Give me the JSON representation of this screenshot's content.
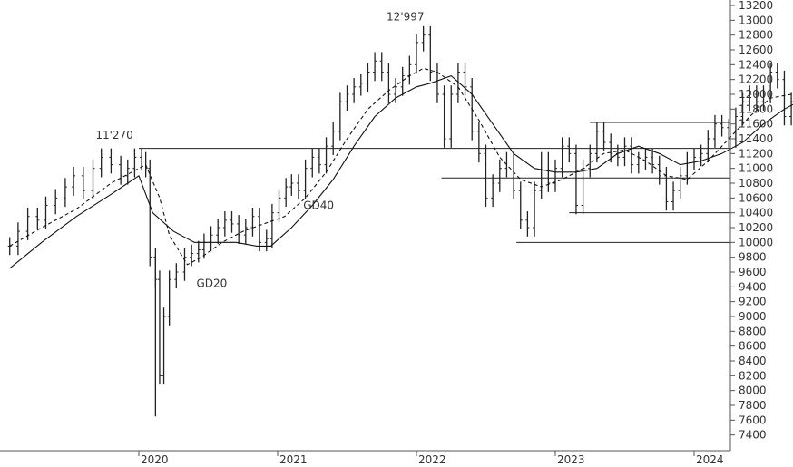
{
  "chart_data": {
    "type": "line",
    "title": "",
    "xlabel": "",
    "ylabel": "",
    "y_axis_position": "right",
    "ylim": [
      7200,
      13200
    ],
    "y_ticks": [
      7400,
      7600,
      7800,
      8000,
      8200,
      8400,
      8600,
      8800,
      9000,
      9200,
      9400,
      9600,
      9800,
      10000,
      10200,
      10400,
      10600,
      10800,
      11000,
      11200,
      11400,
      11600,
      11800,
      12000,
      12200,
      12400,
      12600,
      12800,
      13000,
      13200
    ],
    "x_ticks": [
      "2020",
      "2021",
      "2022",
      "2023",
      "2024"
    ],
    "grid": false,
    "series": [
      {
        "style": "candlestick",
        "points": [
          [
            2019.07,
            9950
          ],
          [
            2019.13,
            10150
          ],
          [
            2019.2,
            10350
          ],
          [
            2019.27,
            10300
          ],
          [
            2019.33,
            10500
          ],
          [
            2019.4,
            10600
          ],
          [
            2019.47,
            10750
          ],
          [
            2019.53,
            10900
          ],
          [
            2019.6,
            10700
          ],
          [
            2019.67,
            11000
          ],
          [
            2019.73,
            11150
          ],
          [
            2019.8,
            11050
          ],
          [
            2019.87,
            10900
          ],
          [
            2019.92,
            11000
          ],
          [
            2019.97,
            11150
          ],
          [
            2020.02,
            11100
          ],
          [
            2020.05,
            11000
          ],
          [
            2020.08,
            9800
          ],
          [
            2020.12,
            9500
          ],
          [
            2020.15,
            8200
          ],
          [
            2020.18,
            9000
          ],
          [
            2020.22,
            9500
          ],
          [
            2020.27,
            9600
          ],
          [
            2020.33,
            9800
          ],
          [
            2020.38,
            9850
          ],
          [
            2020.43,
            9900
          ],
          [
            2020.47,
            10000
          ],
          [
            2020.52,
            10100
          ],
          [
            2020.57,
            10200
          ],
          [
            2020.62,
            10300
          ],
          [
            2020.67,
            10250
          ],
          [
            2020.72,
            10100
          ],
          [
            2020.77,
            10200
          ],
          [
            2020.82,
            10350
          ],
          [
            2020.87,
            10000
          ],
          [
            2020.92,
            10050
          ],
          [
            2020.96,
            10400
          ],
          [
            2021.01,
            10600
          ],
          [
            2021.06,
            10750
          ],
          [
            2021.1,
            10800
          ],
          [
            2021.15,
            10700
          ],
          [
            2021.2,
            11000
          ],
          [
            2021.25,
            11150
          ],
          [
            2021.3,
            11050
          ],
          [
            2021.35,
            11300
          ],
          [
            2021.4,
            11500
          ],
          [
            2021.45,
            11900
          ],
          [
            2021.5,
            12000
          ],
          [
            2021.55,
            12100
          ],
          [
            2021.6,
            12150
          ],
          [
            2021.65,
            12300
          ],
          [
            2021.7,
            12450
          ],
          [
            2021.75,
            12300
          ],
          [
            2021.8,
            12000
          ],
          [
            2021.85,
            12100
          ],
          [
            2021.9,
            12250
          ],
          [
            2021.95,
            12400
          ],
          [
            2022.0,
            12700
          ],
          [
            2022.05,
            12800
          ],
          [
            2022.1,
            12300
          ],
          [
            2022.15,
            12000
          ],
          [
            2022.2,
            11400
          ],
          [
            2022.25,
            12000
          ],
          [
            2022.3,
            12300
          ],
          [
            2022.35,
            12100
          ],
          [
            2022.4,
            11500
          ],
          [
            2022.45,
            11200
          ],
          [
            2022.5,
            10600
          ],
          [
            2022.55,
            10800
          ],
          [
            2022.6,
            11000
          ],
          [
            2022.65,
            11100
          ],
          [
            2022.7,
            10700
          ],
          [
            2022.75,
            10300
          ],
          [
            2022.8,
            10200
          ],
          [
            2022.85,
            10700
          ],
          [
            2022.9,
            11100
          ],
          [
            2022.95,
            10800
          ],
          [
            2023.0,
            11000
          ],
          [
            2023.05,
            11300
          ],
          [
            2023.1,
            11200
          ],
          [
            2023.15,
            10500
          ],
          [
            2023.2,
            11000
          ],
          [
            2023.25,
            11200
          ],
          [
            2023.3,
            11500
          ],
          [
            2023.35,
            11350
          ],
          [
            2023.4,
            11200
          ],
          [
            2023.45,
            11150
          ],
          [
            2023.5,
            11300
          ],
          [
            2023.55,
            11050
          ],
          [
            2023.6,
            11100
          ],
          [
            2023.65,
            11150
          ],
          [
            2023.7,
            11050
          ],
          [
            2023.75,
            10900
          ],
          [
            2023.8,
            10550
          ],
          [
            2023.85,
            10700
          ],
          [
            2023.9,
            10900
          ],
          [
            2023.95,
            11100
          ],
          [
            2024.0,
            11150
          ],
          [
            2024.05,
            11200
          ],
          [
            2024.1,
            11400
          ],
          [
            2024.15,
            11600
          ],
          [
            2024.2,
            11550
          ],
          [
            2024.25,
            11400
          ],
          [
            2024.3,
            11700
          ],
          [
            2024.35,
            11900
          ],
          [
            2024.4,
            12000
          ],
          [
            2024.45,
            11900
          ],
          [
            2024.5,
            12000
          ],
          [
            2024.55,
            12300
          ],
          [
            2024.6,
            12200
          ],
          [
            2024.65,
            11700
          ],
          [
            2024.7,
            11900
          ],
          [
            2024.75,
            12100
          ],
          [
            2024.8,
            12150
          ],
          [
            2024.85,
            12300
          ],
          [
            2024.9,
            12000
          ],
          [
            2024.95,
            11800
          ],
          [
            2025.0,
            11600
          ]
        ]
      },
      {
        "name": "GD20",
        "style": "dashed",
        "points": [
          [
            2019.07,
            9950
          ],
          [
            2019.3,
            10200
          ],
          [
            2019.55,
            10450
          ],
          [
            2019.8,
            10800
          ],
          [
            2020.0,
            11000
          ],
          [
            2020.05,
            11050
          ],
          [
            2020.15,
            10600
          ],
          [
            2020.22,
            10100
          ],
          [
            2020.35,
            9700
          ],
          [
            2020.45,
            9800
          ],
          [
            2020.6,
            10000
          ],
          [
            2020.75,
            10150
          ],
          [
            2020.9,
            10250
          ],
          [
            2021.05,
            10350
          ],
          [
            2021.2,
            10600
          ],
          [
            2021.35,
            10950
          ],
          [
            2021.5,
            11400
          ],
          [
            2021.65,
            11800
          ],
          [
            2021.8,
            12050
          ],
          [
            2021.95,
            12250
          ],
          [
            2022.05,
            12350
          ],
          [
            2022.15,
            12300
          ],
          [
            2022.3,
            12100
          ],
          [
            2022.45,
            11650
          ],
          [
            2022.6,
            11150
          ],
          [
            2022.75,
            10850
          ],
          [
            2022.9,
            10750
          ],
          [
            2023.05,
            10850
          ],
          [
            2023.2,
            11000
          ],
          [
            2023.35,
            11200
          ],
          [
            2023.5,
            11250
          ],
          [
            2023.65,
            11100
          ],
          [
            2023.8,
            10900
          ],
          [
            2023.95,
            10850
          ],
          [
            2024.1,
            11100
          ],
          [
            2024.25,
            11400
          ],
          [
            2024.4,
            11700
          ],
          [
            2024.55,
            11950
          ],
          [
            2024.7,
            12000
          ],
          [
            2024.85,
            12050
          ],
          [
            2025.0,
            12050
          ]
        ]
      },
      {
        "name": "GD40",
        "style": "solid",
        "points": [
          [
            2019.07,
            9650
          ],
          [
            2019.3,
            10000
          ],
          [
            2019.55,
            10350
          ],
          [
            2019.8,
            10650
          ],
          [
            2020.0,
            10900
          ],
          [
            2020.1,
            10400
          ],
          [
            2020.25,
            10150
          ],
          [
            2020.4,
            10000
          ],
          [
            2020.55,
            10000
          ],
          [
            2020.7,
            10000
          ],
          [
            2020.85,
            9950
          ],
          [
            2020.95,
            9950
          ],
          [
            2021.1,
            10200
          ],
          [
            2021.25,
            10500
          ],
          [
            2021.4,
            10850
          ],
          [
            2021.55,
            11300
          ],
          [
            2021.7,
            11700
          ],
          [
            2021.85,
            11950
          ],
          [
            2022.0,
            12100
          ],
          [
            2022.1,
            12150
          ],
          [
            2022.25,
            12250
          ],
          [
            2022.4,
            12000
          ],
          [
            2022.55,
            11600
          ],
          [
            2022.7,
            11200
          ],
          [
            2022.85,
            11000
          ],
          [
            2023.0,
            10950
          ],
          [
            2023.15,
            10950
          ],
          [
            2023.3,
            11000
          ],
          [
            2023.45,
            11200
          ],
          [
            2023.6,
            11300
          ],
          [
            2023.75,
            11200
          ],
          [
            2023.9,
            11050
          ],
          [
            2024.05,
            11100
          ],
          [
            2024.2,
            11200
          ],
          [
            2024.35,
            11350
          ],
          [
            2024.5,
            11600
          ],
          [
            2024.65,
            11800
          ],
          [
            2024.8,
            11950
          ],
          [
            2024.95,
            11850
          ],
          [
            2025.0,
            11850
          ]
        ]
      }
    ],
    "levels": [
      {
        "value": 11270,
        "from": 2020.0
      },
      {
        "value": 10870,
        "from": 2022.18
      },
      {
        "value": 10000,
        "from": 2022.72
      },
      {
        "value": 10400,
        "from": 2023.1
      },
      {
        "value": 11620,
        "from": 2023.25
      }
    ],
    "annotations": [
      {
        "text": "11'270",
        "x": 2019.95,
        "y": 11400
      },
      {
        "text": "12'997",
        "x": 2021.85,
        "y": 13000
      },
      {
        "text": "GD40",
        "x": 2021.25,
        "y": 10450
      },
      {
        "text": "GD20",
        "x": 2020.48,
        "y": 9400
      }
    ]
  }
}
